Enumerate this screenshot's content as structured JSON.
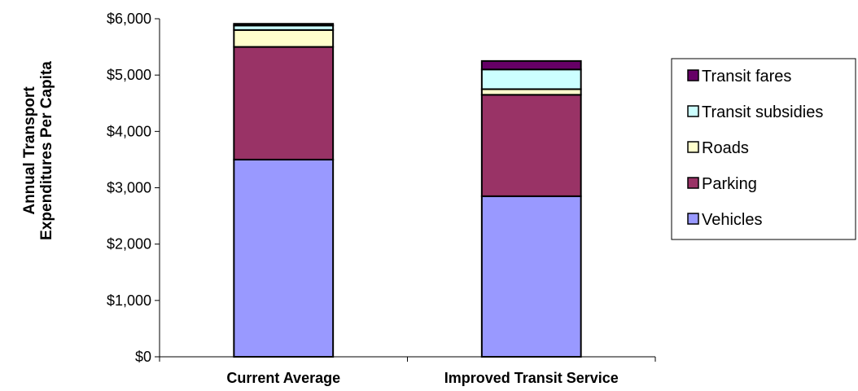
{
  "chart_data": {
    "type": "bar",
    "stacked": true,
    "categories": [
      "Current Average",
      "Improved Transit Service"
    ],
    "ylabel_lines": [
      "Annual Transport",
      "Expenditures Per Capita"
    ],
    "ylim": [
      0,
      6000
    ],
    "yticks": [
      0,
      1000,
      2000,
      3000,
      4000,
      5000,
      6000
    ],
    "ytick_labels": [
      "$0",
      "$1,000",
      "$2,000",
      "$3,000",
      "$4,000",
      "$5,000",
      "$6,000"
    ],
    "grid": false,
    "legend_position": "right",
    "series": [
      {
        "name": "Vehicles",
        "color": "#9999ff",
        "values": [
          3500,
          2850
        ]
      },
      {
        "name": "Parking",
        "color": "#993366",
        "values": [
          2000,
          1800
        ]
      },
      {
        "name": "Roads",
        "color": "#ffffcc",
        "values": [
          300,
          100
        ]
      },
      {
        "name": "Transit subsidies",
        "color": "#ccffff",
        "values": [
          80,
          350
        ]
      },
      {
        "name": "Transit fares",
        "color": "#660066",
        "values": [
          30,
          150
        ]
      }
    ],
    "legend_order": [
      "Transit fares",
      "Transit subsidies",
      "Roads",
      "Parking",
      "Vehicles"
    ]
  }
}
